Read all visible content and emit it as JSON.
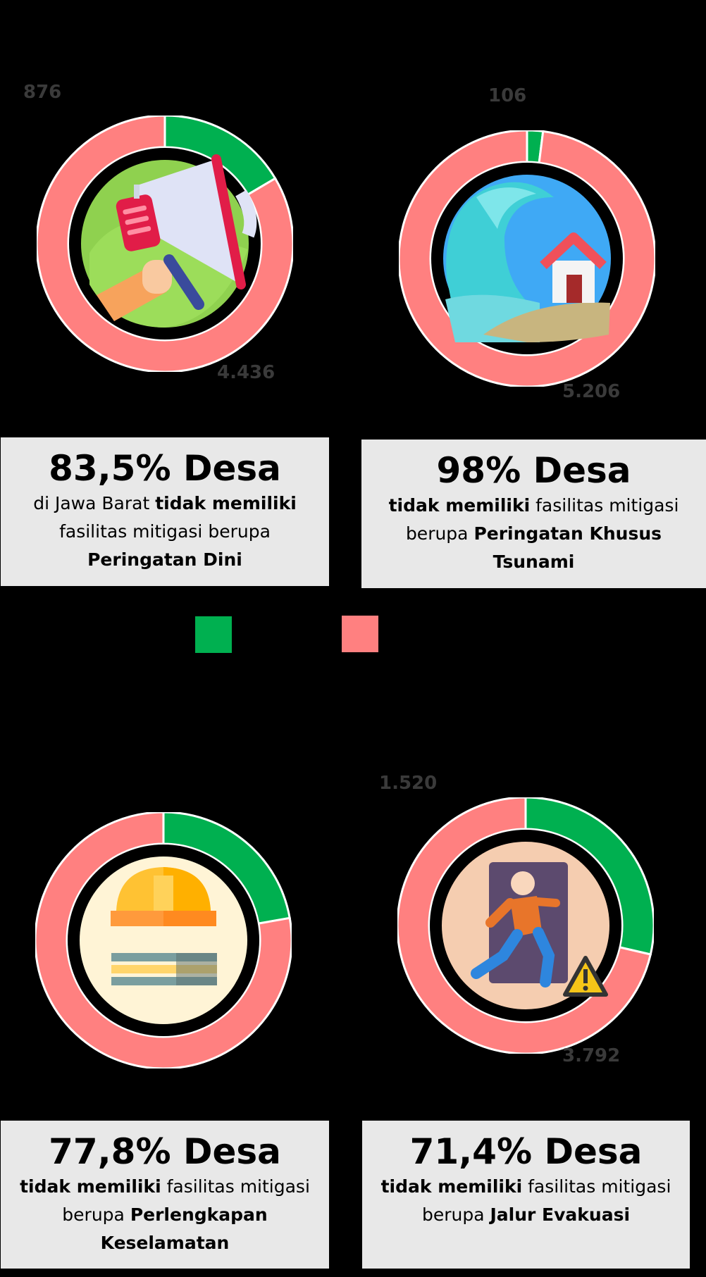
{
  "colors": {
    "has": "#00b050",
    "not_has": "#ff8080",
    "box_bg": "#e8e8e8",
    "value_label": "#3a3a3a"
  },
  "legend": [
    {
      "color": "#00b050",
      "label": ""
    },
    {
      "color": "#ff8080",
      "label": ""
    }
  ],
  "chart_data": [
    {
      "type": "pie",
      "title": "",
      "slices": [
        {
          "label": "",
          "value": 876,
          "value_label": "876",
          "color": "#00b050"
        },
        {
          "label": "",
          "value": 4436,
          "value_label": "4.436",
          "color": "#ff8080"
        }
      ],
      "icon": "megaphone-icon",
      "headline": "83,5% Desa",
      "description": [
        {
          "text": "di Jawa Barat ",
          "bold": false
        },
        {
          "text": "tidak memiliki",
          "bold": true
        },
        {
          "text": " fasilitas mitigasi berupa ",
          "bold": false
        },
        {
          "text": "Peringatan Dini",
          "bold": true
        }
      ]
    },
    {
      "type": "pie",
      "title": "",
      "slices": [
        {
          "label": "",
          "value": 106,
          "value_label": "106",
          "color": "#00b050"
        },
        {
          "label": "",
          "value": 5206,
          "value_label": "5.206",
          "color": "#ff8080"
        }
      ],
      "icon": "tsunami-house-icon",
      "headline": "98% Desa",
      "description": [
        {
          "text": "tidak memiliki",
          "bold": true
        },
        {
          "text": " fasilitas mitigasi berupa ",
          "bold": false
        },
        {
          "text": "Peringatan Khusus Tsunami",
          "bold": true
        }
      ]
    },
    {
      "type": "pie",
      "title": "",
      "slices": [
        {
          "label": "",
          "value": 1180,
          "value_label": "",
          "color": "#00b050"
        },
        {
          "label": "",
          "value": 4132,
          "value_label": "",
          "color": "#ff8080"
        }
      ],
      "icon": "safety-helmet-icon",
      "headline": "77,8% Desa",
      "description": [
        {
          "text": "tidak memiliki",
          "bold": true
        },
        {
          "text": " fasilitas mitigasi berupa ",
          "bold": false
        },
        {
          "text": "Perlengkapan Keselamatan",
          "bold": true
        }
      ]
    },
    {
      "type": "pie",
      "title": "",
      "slices": [
        {
          "label": "",
          "value": 1520,
          "value_label": "1.520",
          "color": "#00b050"
        },
        {
          "label": "",
          "value": 3792,
          "value_label": "3.792",
          "color": "#ff8080"
        }
      ],
      "icon": "evacuation-exit-icon",
      "headline": "71,4% Desa",
      "description": [
        {
          "text": "tidak memiliki",
          "bold": true
        },
        {
          "text": " fasilitas mitigasi berupa ",
          "bold": false
        },
        {
          "text": "Jalur Evakuasi",
          "bold": true
        }
      ]
    }
  ]
}
